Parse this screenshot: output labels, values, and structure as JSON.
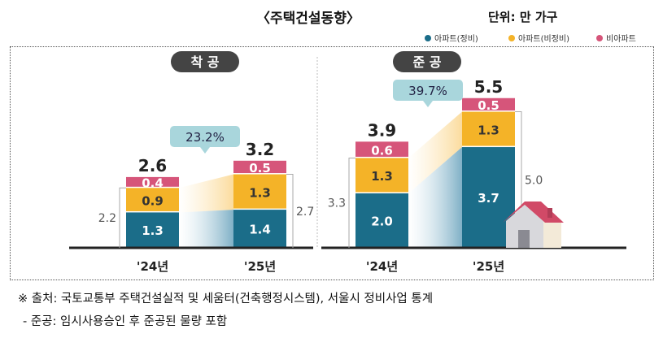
{
  "title": "〈주택건설동향〉",
  "unit": "단위: 만 가구",
  "legend": [
    {
      "label": "아파트(정비)",
      "color": "#1b6d89"
    },
    {
      "label": "아파트(비정비)",
      "color": "#f4b328"
    },
    {
      "label": "비아파트",
      "color": "#d6557a"
    }
  ],
  "notes": [
    "※ 출처: 국토교통부 주택건설실적 및 세움터(건축행정시스템), 서울시 정비사업 통계",
    "- 준공: 임시사용승인 후 준공된 물량 포함"
  ],
  "chart_data": [
    {
      "type": "bar",
      "stacked": true,
      "title": "착 공",
      "categories": [
        "'24년",
        "'25년"
      ],
      "series": [
        {
          "name": "아파트(정비)",
          "values": [
            1.3,
            1.4
          ]
        },
        {
          "name": "아파트(비정비)",
          "values": [
            0.9,
            1.3
          ]
        },
        {
          "name": "비아파트",
          "values": [
            0.4,
            0.5
          ]
        }
      ],
      "totals": [
        "2.6",
        "3.2"
      ],
      "apartment_totals": [
        "2.2",
        "2.7"
      ],
      "growth": "23.2%"
    },
    {
      "type": "bar",
      "stacked": true,
      "title": "준 공",
      "categories": [
        "'24년",
        "'25년"
      ],
      "series": [
        {
          "name": "아파트(정비)",
          "values": [
            2.0,
            3.7
          ]
        },
        {
          "name": "아파트(비정비)",
          "values": [
            1.3,
            1.3
          ]
        },
        {
          "name": "비아파트",
          "values": [
            0.6,
            0.5
          ]
        }
      ],
      "totals": [
        "3.9",
        "5.5"
      ],
      "apartment_totals": [
        "3.3",
        "5.0"
      ],
      "growth": "39.7%"
    }
  ]
}
